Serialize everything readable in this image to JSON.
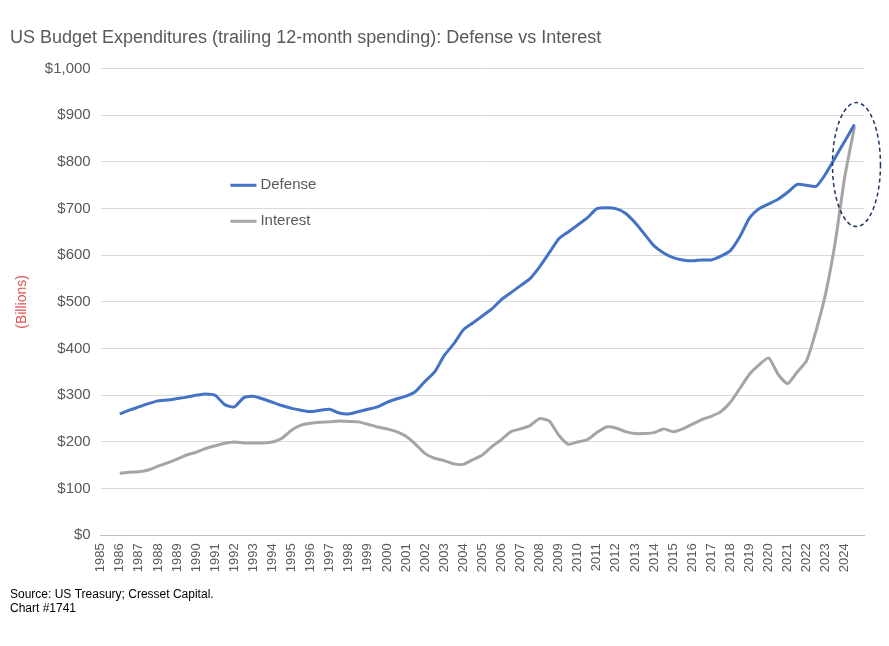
{
  "chart_data": {
    "type": "line",
    "title": "US Budget Expenditures (trailing 12-month spending): Defense vs Interest",
    "y_label": "(Billions)",
    "source": "Source: US Treasury; Cresset Capital.",
    "note": "Chart #1741",
    "legend": "upper left",
    "grid": true,
    "marker": "none",
    "line_style": "solid",
    "xlim": [
      1985,
      2025
    ],
    "xticks": [
      1985,
      1986,
      1987,
      1988,
      1989,
      1990,
      1991,
      1992,
      1993,
      1994,
      1995,
      1996,
      1997,
      1998,
      1999,
      2000,
      2001,
      2002,
      2003,
      2004,
      2005,
      2006,
      2007,
      2008,
      2009,
      2010,
      2011,
      2012,
      2013,
      2014,
      2015,
      2016,
      2017,
      2018,
      2019,
      2020,
      2021,
      2022,
      2023,
      2024
    ],
    "ylim": [
      0,
      1000
    ],
    "yticks": [
      {
        "value": 0,
        "label": "$0"
      },
      {
        "value": 100,
        "label": "$100"
      },
      {
        "value": 200,
        "label": "$200"
      },
      {
        "value": 300,
        "label": "$300"
      },
      {
        "value": 400,
        "label": "$400"
      },
      {
        "value": 500,
        "label": "$500"
      },
      {
        "value": 600,
        "label": "$600"
      },
      {
        "value": 700,
        "label": "$700"
      },
      {
        "value": 800,
        "label": "$800"
      },
      {
        "value": 900,
        "label": "$900"
      },
      {
        "value": 1000,
        "label": "$1,000"
      }
    ],
    "x": [
      1986,
      1986.5,
      1987,
      1987.5,
      1988,
      1988.5,
      1989,
      1989.5,
      1990,
      1990.5,
      1991,
      1991.5,
      1992,
      1992.5,
      1993,
      1993.5,
      1994,
      1994.5,
      1995,
      1995.5,
      1996,
      1996.5,
      1997,
      1997.5,
      1998,
      1998.5,
      1999,
      1999.5,
      2000,
      2000.5,
      2001,
      2001.5,
      2002,
      2002.5,
      2003,
      2003.5,
      2004,
      2004.5,
      2005,
      2005.5,
      2006,
      2006.5,
      2007,
      2007.5,
      2008,
      2008.5,
      2009,
      2009.5,
      2010,
      2010.5,
      2011,
      2011.5,
      2012,
      2012.5,
      2013,
      2013.5,
      2014,
      2014.5,
      2015,
      2015.5,
      2016,
      2016.5,
      2017,
      2017.5,
      2018,
      2018.5,
      2019,
      2019.5,
      2020,
      2020.5,
      2021,
      2021.5,
      2022,
      2022.5,
      2023,
      2023.5,
      2024,
      2024.5
    ],
    "series": [
      {
        "name": "Defense",
        "color": "#4472c4",
        "values": [
          260,
          268,
          275,
          282,
          288,
          290,
          293,
          296,
          300,
          303,
          300,
          280,
          275,
          295,
          298,
          292,
          285,
          278,
          272,
          268,
          265,
          268,
          270,
          262,
          260,
          265,
          270,
          275,
          285,
          292,
          298,
          308,
          330,
          350,
          385,
          410,
          440,
          455,
          470,
          485,
          505,
          520,
          535,
          550,
          575,
          605,
          635,
          650,
          665,
          680,
          700,
          702,
          700,
          690,
          670,
          645,
          620,
          605,
          595,
          590,
          588,
          590,
          590,
          598,
          610,
          640,
          680,
          700,
          710,
          720,
          735,
          752,
          750,
          748,
          775,
          810,
          845,
          880
        ]
      },
      {
        "name": "Interest",
        "color": "#a5a5a5",
        "values": [
          133,
          135,
          136,
          140,
          148,
          155,
          163,
          172,
          178,
          186,
          192,
          197,
          200,
          198,
          198,
          198,
          200,
          208,
          225,
          236,
          240,
          242,
          243,
          245,
          244,
          243,
          238,
          232,
          228,
          222,
          212,
          195,
          175,
          165,
          160,
          153,
          152,
          162,
          172,
          190,
          205,
          222,
          228,
          235,
          250,
          245,
          215,
          195,
          200,
          205,
          220,
          232,
          230,
          222,
          218,
          218,
          220,
          228,
          222,
          228,
          238,
          248,
          255,
          265,
          285,
          315,
          345,
          365,
          380,
          345,
          325,
          350,
          375,
          440,
          520,
          630,
          770,
          875
        ]
      }
    ]
  }
}
